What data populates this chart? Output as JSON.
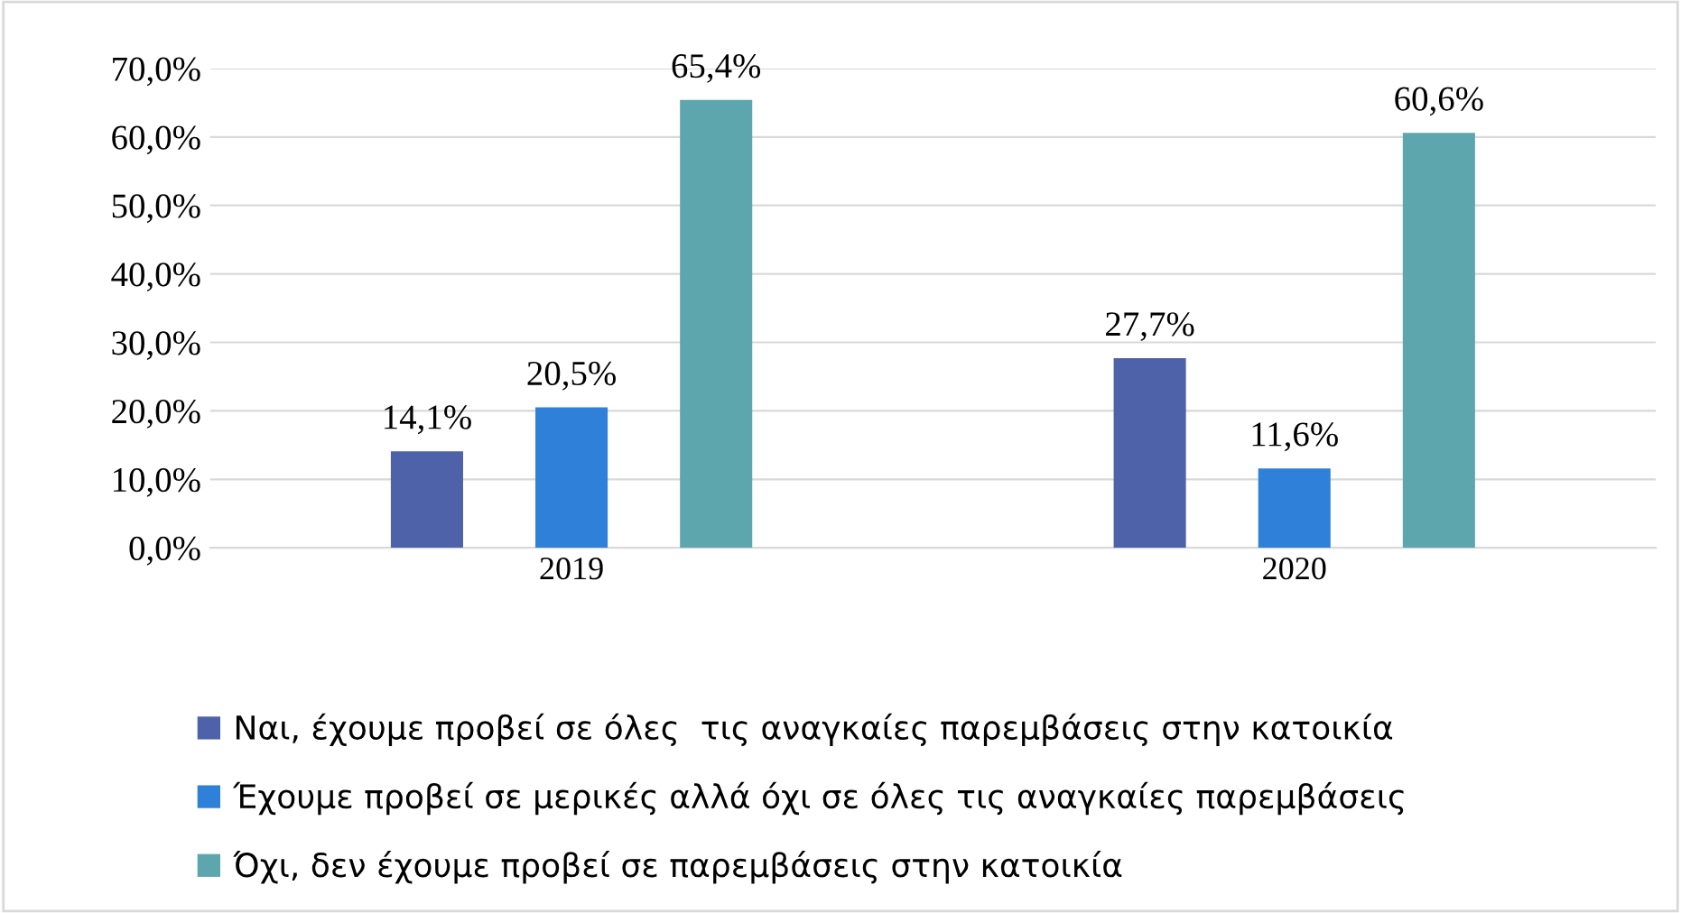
{
  "chart_data": {
    "type": "bar",
    "categories": [
      "2019",
      "2020"
    ],
    "series": [
      {
        "name": "Ναι, έχουμε προβεί σε όλες  τις αναγκαίες παρεμβάσεις στην κατοικία",
        "color": "#4e62aa",
        "values": [
          14.1,
          27.7
        ],
        "value_labels": [
          "14,1%",
          "27,7%"
        ]
      },
      {
        "name": "Έχουμε προβεί σε μερικές αλλά όχι σε όλες τις αναγκαίες παρεμβάσεις",
        "color": "#2f80d8",
        "values": [
          20.5,
          11.6
        ],
        "value_labels": [
          "20,5%",
          "11,6%"
        ]
      },
      {
        "name": "Όχι, δεν έχουμε προβεί σε παρεμβάσεις στην κατοικία",
        "color": "#5ea6ad",
        "values": [
          65.4,
          60.6
        ],
        "value_labels": [
          "65,4%",
          "60,6%"
        ]
      }
    ],
    "ylim": [
      0,
      70
    ],
    "yticks": [
      {
        "value": 0,
        "label": "0,0%"
      },
      {
        "value": 10,
        "label": "10,0%"
      },
      {
        "value": 20,
        "label": "20,0%"
      },
      {
        "value": 30,
        "label": "30,0%"
      },
      {
        "value": 40,
        "label": "40,0%"
      },
      {
        "value": 50,
        "label": "50,0%"
      },
      {
        "value": 60,
        "label": "60,0%"
      },
      {
        "value": 70,
        "label": "70,0%"
      }
    ],
    "grid": "y",
    "legend": "bottom"
  }
}
